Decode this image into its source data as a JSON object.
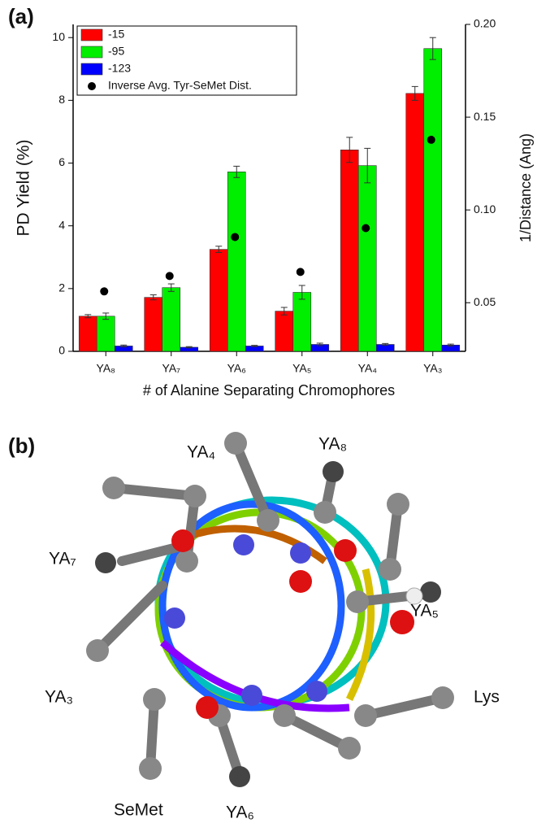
{
  "panel_labels": [
    "(a)",
    "(b)"
  ],
  "chart_data": {
    "type": "bar",
    "ylabel": "PD Yield (%)",
    "y2label": "1/Distance (Ang)",
    "xlabel": "# of Alanine Separating Chromophores",
    "categories": [
      "YA₈",
      "YA₇",
      "YA₆",
      "YA₅",
      "YA₄",
      "YA₃"
    ],
    "series": [
      {
        "name": "-15",
        "color": "#ff0000",
        "values": [
          1.12,
          1.72,
          3.25,
          1.28,
          6.42,
          8.22
        ],
        "errors": [
          0.05,
          0.08,
          0.1,
          0.12,
          0.4,
          0.22
        ]
      },
      {
        "name": "-95",
        "color": "#00ee00",
        "values": [
          1.12,
          2.03,
          5.72,
          1.88,
          5.92,
          9.65
        ],
        "errors": [
          0.1,
          0.12,
          0.18,
          0.22,
          0.55,
          0.35
        ]
      },
      {
        "name": "-123",
        "color": "#0000ff",
        "values": [
          0.17,
          0.13,
          0.17,
          0.22,
          0.22,
          0.2
        ],
        "errors": [
          0.03,
          0.02,
          0.02,
          0.04,
          0.03,
          0.03
        ]
      },
      {
        "name": "Inverse Avg. Tyr-SeMet Dist.",
        "type": "scatter",
        "axis": "y2",
        "color": "#000000",
        "values": [
          0.0561,
          0.0644,
          0.0854,
          0.0666,
          0.0902,
          0.1378
        ]
      }
    ],
    "ylim": [
      0,
      10.42
    ],
    "yticks": [
      0,
      2,
      4,
      6,
      8,
      10
    ],
    "y2lim": [
      0.0238,
      0.2
    ],
    "y2ticks": [
      {
        "value": 0.05,
        "label": "0.05"
      },
      {
        "value": 0.1,
        "label": "0.10"
      },
      {
        "value": 0.15,
        "label": "0.15"
      },
      {
        "value": 0.2,
        "label": "0.20"
      }
    ],
    "legend": "upper left"
  },
  "molecule_labels": [
    "YA₄",
    "YA₈",
    "YA₇",
    "YA₅",
    "YA₃",
    "Lys",
    "SeMet",
    "YA₆"
  ]
}
